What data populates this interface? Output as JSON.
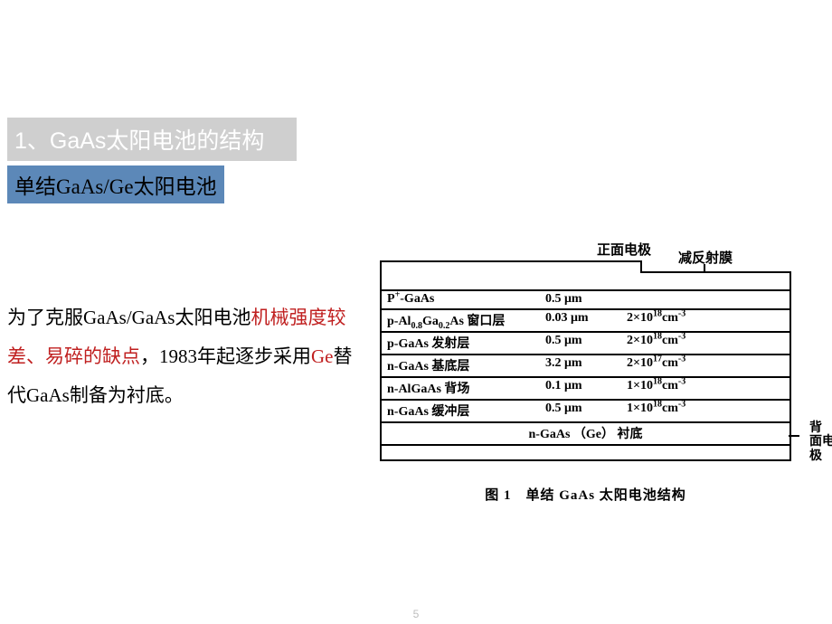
{
  "title": "1、GaAs太阳电池的结构",
  "subtitle": "单结GaAs/Ge太阳电池",
  "paragraph": {
    "p1a": "为了克服GaAs/GaAs太阳电池",
    "h1": "机械强度较差、易碎的缺点",
    "p1b": "，1983年起逐步采用",
    "h2": "Ge",
    "p1c": "替代GaAs制备为衬底。"
  },
  "diagram": {
    "top_electrode": "正面电极",
    "arc_label": "减反射膜",
    "layers": [
      {
        "name_html": "P<sup>+</sup>-GaAs",
        "thickness": "0.5 μm",
        "doping": ""
      },
      {
        "name_html": "p-Al<sub>0.8</sub>Ga<sub>0.2</sub>As 窗口层",
        "thickness": "0.03 μm",
        "doping": "2×10<sup>18</sup>cm<sup>-3</sup>"
      },
      {
        "name_html": "p-GaAs 发射层",
        "thickness": "0.5 μm",
        "doping": "2×10<sup>18</sup>cm<sup>-3</sup>"
      },
      {
        "name_html": "n-GaAs 基底层",
        "thickness": "3.2 μm",
        "doping": "2×10<sup>17</sup>cm<sup>-3</sup>"
      },
      {
        "name_html": "n-AlGaAs 背场",
        "thickness": "0.1 μm",
        "doping": "1×10<sup>18</sup>cm<sup>-3</sup>"
      },
      {
        "name_html": "n-GaAs 缓冲层",
        "thickness": "0.5 μm",
        "doping": "1×10<sup>18</sup>cm<sup>-3</sup>"
      }
    ],
    "substrate": "n-GaAs （Ge） 衬底",
    "back_electrode": "背 面电 极",
    "caption": "图 1　单结 GaAs 太阳电池结构"
  },
  "page_number": "5"
}
